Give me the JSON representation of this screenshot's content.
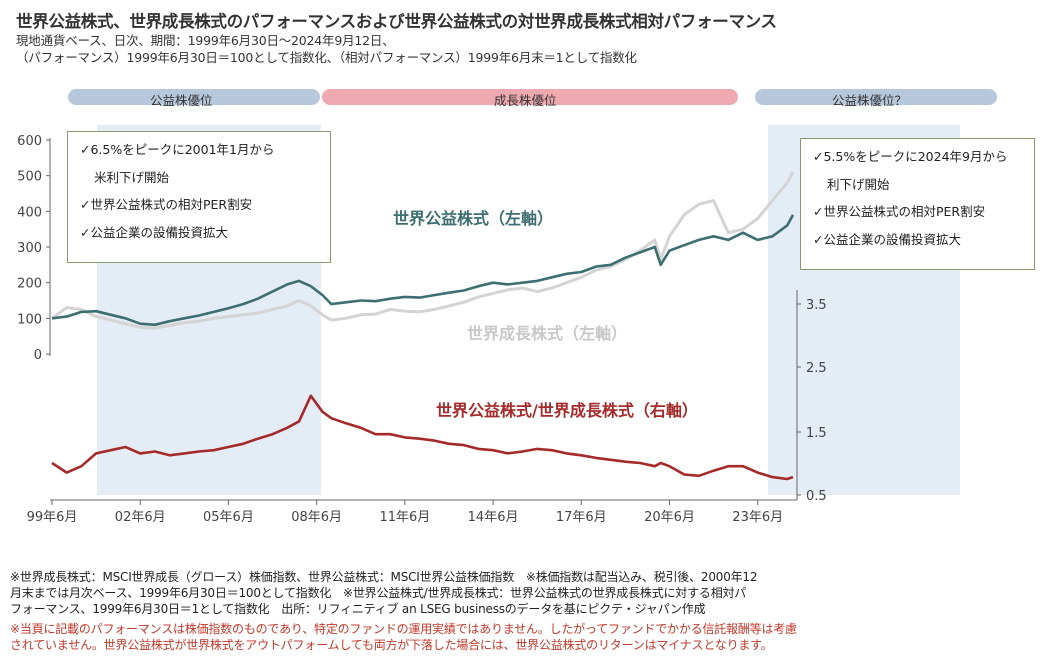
{
  "header": {
    "title": "世界公益株式、世界成長株式のパフォーマンスおよび世界公益株式の対世界成長株式相対パフォーマンス",
    "subtitle1": "現地通貨ベース、日次、期間：1999年6月30日～2024年9月12日、",
    "subtitle2": "（パフォーマンス）1999年6月30日＝100として指数化、（相対パフォーマンス）1999年6月末＝1として指数化"
  },
  "regimes": {
    "band1_label": "公益株優位",
    "band2_label": "成長株優位",
    "band3_label": "公益株優位？",
    "band1_color": "#b8c8dc",
    "band2_color": "#eeaab0",
    "band3_color": "#b8c8dc"
  },
  "notes": {
    "left": [
      "✓6.5%をピークに2001年1月から",
      "米利下げ開始",
      "✓世界公益株式の相対PER割安",
      "✓公益企業の設備投資拡大"
    ],
    "right": [
      "✓5.5%をピークに2024年9月から",
      "利下げ開始",
      "✓世界公益株式の相対PER割安",
      "✓公益企業の設備投資拡大"
    ]
  },
  "labels": {
    "utilities": "世界公益株式（左軸）",
    "growth": "世界成長株式（左軸）",
    "ratio": "世界公益株式/世界成長株式（右軸）"
  },
  "colors": {
    "utilities": "#3d6e70",
    "growth": "#d4d4d4",
    "ratio": "#a52a2a",
    "axis": "#666666"
  },
  "chart_data": {
    "type": "line",
    "x_ticks": [
      "99年6月",
      "02年6月",
      "05年6月",
      "08年6月",
      "11年6月",
      "14年6月",
      "17年6月",
      "20年6月",
      "23年6月"
    ],
    "left_axis": {
      "ticks": [
        "600",
        "500",
        "400",
        "300",
        "200",
        "100",
        "0"
      ],
      "ylim": [
        0,
        600
      ]
    },
    "right_axis": {
      "ticks": [
        "3.5",
        "2.5",
        "1.5",
        "0.5"
      ],
      "ylim": [
        0.5,
        3.5
      ]
    },
    "x": [
      1999.5,
      2000.0,
      2000.5,
      2001.0,
      2001.5,
      2002.0,
      2002.5,
      2003.0,
      2003.5,
      2004.0,
      2004.5,
      2005.0,
      2005.5,
      2006.0,
      2006.5,
      2007.0,
      2007.5,
      2007.9,
      2008.3,
      2008.7,
      2009.0,
      2009.5,
      2010.0,
      2010.5,
      2011.0,
      2011.5,
      2012.0,
      2012.5,
      2013.0,
      2013.5,
      2014.0,
      2014.5,
      2015.0,
      2015.5,
      2016.0,
      2016.5,
      2017.0,
      2017.5,
      2018.0,
      2018.5,
      2019.0,
      2019.5,
      2020.0,
      2020.2,
      2020.5,
      2021.0,
      2021.5,
      2022.0,
      2022.5,
      2023.0,
      2023.5,
      2024.0,
      2024.5,
      2024.7
    ],
    "series": [
      {
        "name": "世界公益株式（左軸）",
        "axis": "left",
        "values": [
          100,
          105,
          118,
          120,
          110,
          100,
          85,
          82,
          92,
          100,
          108,
          118,
          128,
          140,
          155,
          175,
          195,
          205,
          190,
          165,
          140,
          145,
          150,
          148,
          155,
          160,
          158,
          165,
          172,
          178,
          190,
          200,
          195,
          200,
          205,
          215,
          225,
          230,
          245,
          250,
          270,
          285,
          300,
          250,
          290,
          305,
          320,
          330,
          320,
          340,
          320,
          330,
          360,
          390
        ]
      },
      {
        "name": "世界成長株式（左軸）",
        "axis": "left",
        "values": [
          100,
          130,
          125,
          105,
          95,
          85,
          75,
          72,
          80,
          88,
          92,
          100,
          105,
          110,
          115,
          125,
          135,
          150,
          135,
          110,
          95,
          100,
          110,
          112,
          125,
          120,
          118,
          125,
          135,
          145,
          160,
          170,
          180,
          185,
          175,
          185,
          200,
          215,
          235,
          245,
          265,
          290,
          320,
          265,
          330,
          390,
          420,
          430,
          340,
          350,
          380,
          430,
          480,
          510
        ]
      },
      {
        "name": "世界公益株式/世界成長株式（右軸）",
        "axis": "right",
        "values": [
          1.0,
          0.85,
          0.95,
          1.15,
          1.2,
          1.25,
          1.15,
          1.18,
          1.12,
          1.15,
          1.18,
          1.2,
          1.25,
          1.3,
          1.38,
          1.45,
          1.55,
          1.65,
          2.05,
          1.8,
          1.7,
          1.62,
          1.55,
          1.45,
          1.45,
          1.4,
          1.38,
          1.35,
          1.3,
          1.28,
          1.22,
          1.2,
          1.15,
          1.18,
          1.22,
          1.2,
          1.15,
          1.12,
          1.08,
          1.05,
          1.02,
          1.0,
          0.95,
          1.0,
          0.95,
          0.82,
          0.8,
          0.88,
          0.95,
          0.95,
          0.85,
          0.78,
          0.75,
          0.78
        ]
      }
    ]
  },
  "footer": {
    "line1": "※世界成長株式：MSCI世界成長（グロース）株価指数、世界公益株式：MSCI世界公益株価指数　※株価指数は配当込み、税引後、2000年12",
    "line2": "月末までは月次ベース、1999年6月30日＝100として指数化　※世界公益株式/世界成長株式：世界公益株式の世界成長株式に対する相対パ",
    "line3": "フォーマンス、1999年6月30日＝1として指数化　出所：リフィニティブ an LSEG businessのデータを基にピクテ・ジャパン作成",
    "line4": "※当頁に記載のパフォーマンスは株価指数のものであり、特定のファンドの運用実績ではありません。したがってファンドでかかる信託報酬等は考慮",
    "line5": "されていません。世界公益株式が世界株式をアウトパフォームしても両方が下落した場合には、世界公益株式のリターンはマイナスとなります。"
  }
}
